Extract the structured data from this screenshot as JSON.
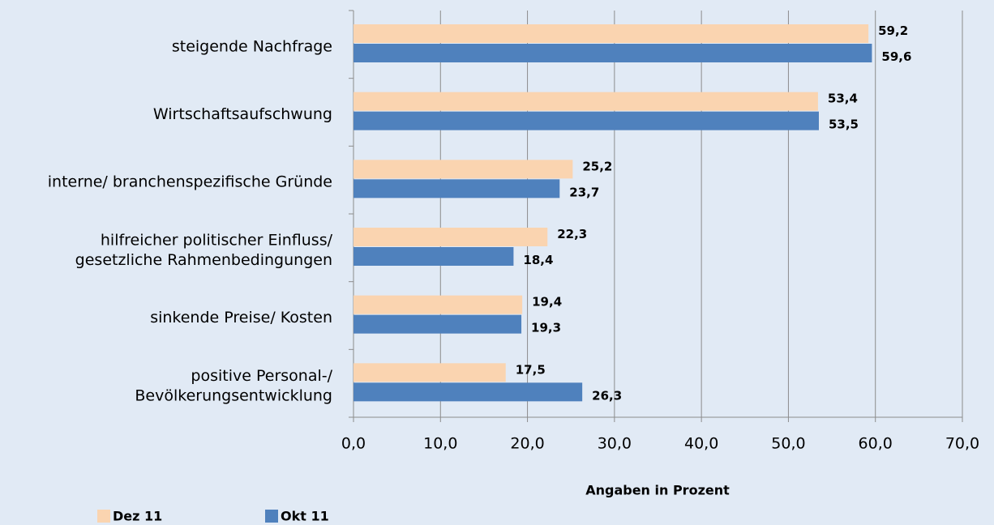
{
  "chart_data": {
    "type": "bar",
    "orientation": "horizontal",
    "x_label": "Angaben in Prozent",
    "categories": [
      "steigende Nachfrage",
      "Wirtschaftsaufschwung",
      "interne/ branchenspezifische Gründe",
      "hilfreicher politischer Einfluss/\ngesetzliche Rahmenbedingungen",
      "sinkende Preise/ Kosten",
      "positive Personal-/\nBevölkerungsentwicklung"
    ],
    "series": [
      {
        "name": "Dez 11",
        "color": "#fad4b0",
        "values": [
          59.2,
          53.4,
          25.2,
          22.3,
          19.4,
          17.5
        ],
        "value_labels": [
          "59,2",
          "53,4",
          "25,2",
          "22,3",
          "19,4",
          "17,5"
        ]
      },
      {
        "name": "Okt 11",
        "color": "#4f81bd",
        "values": [
          59.6,
          53.5,
          23.7,
          18.4,
          19.3,
          26.3
        ],
        "value_labels": [
          "59,6",
          "53,5",
          "23,7",
          "18,4",
          "19,3",
          "26,3"
        ]
      }
    ],
    "xlim": [
      0,
      70
    ],
    "xticks": [
      {
        "value": 0,
        "label": "0,0"
      },
      {
        "value": 10,
        "label": "10,0"
      },
      {
        "value": 20,
        "label": "20,0"
      },
      {
        "value": 30,
        "label": "30,0"
      },
      {
        "value": 40,
        "label": "40,0"
      },
      {
        "value": 50,
        "label": "50,0"
      },
      {
        "value": 60,
        "label": "60,0"
      },
      {
        "value": 70,
        "label": "70,0"
      }
    ],
    "grid": true,
    "legend": "bottom-left"
  }
}
